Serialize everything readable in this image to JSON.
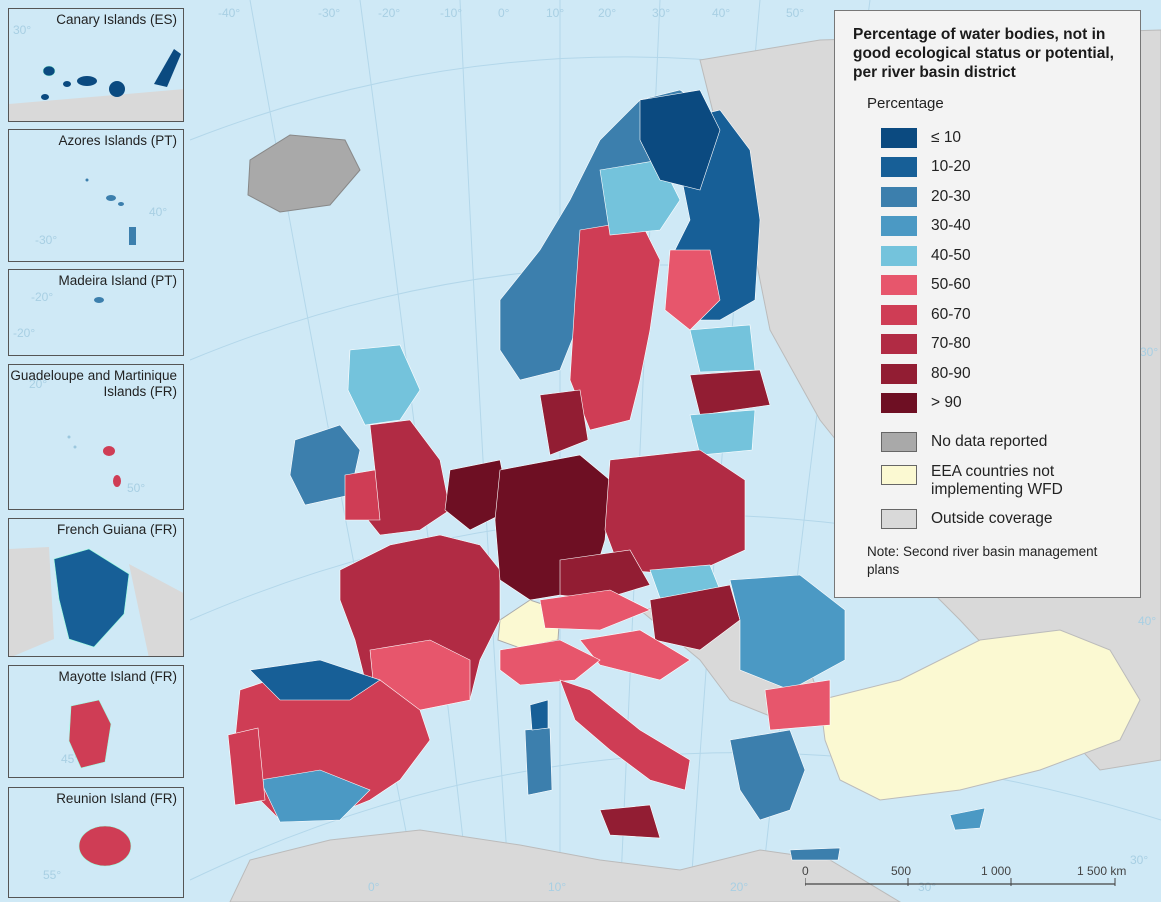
{
  "legend": {
    "title": "Percentage of water bodies, not in good ecological status or potential, per river basin district",
    "subtitle": "Percentage",
    "classes": [
      {
        "label": "≤ 10",
        "color": "#0b4a80"
      },
      {
        "label": "10-20",
        "color": "#175f97"
      },
      {
        "label": "20-30",
        "color": "#3c7fad"
      },
      {
        "label": "30-40",
        "color": "#4b99c4"
      },
      {
        "label": "40-50",
        "color": "#74c3dc"
      },
      {
        "label": "50-60",
        "color": "#e7566c"
      },
      {
        "label": "60-70",
        "color": "#cf3d55"
      },
      {
        "label": "70-80",
        "color": "#b12b44"
      },
      {
        "label": "80-90",
        "color": "#921d33"
      },
      {
        "label": "> 90",
        "color": "#6e0f23"
      }
    ],
    "other_classes": [
      {
        "label": "No data reported",
        "color": "#a9a9a9"
      },
      {
        "label": "EEA countries not implementing WFD",
        "color": "#fbf9d2"
      },
      {
        "label": "Outside coverage",
        "color": "#d9d9d9"
      }
    ],
    "note": "Note: Second river basin management plans"
  },
  "insets": [
    {
      "label": "Canary Islands (ES)"
    },
    {
      "label": "Azores Islands (PT)"
    },
    {
      "label": "Madeira Island (PT)"
    },
    {
      "label": "Guadeloupe and Martinique Islands (FR)"
    },
    {
      "label": "French Guiana (FR)"
    },
    {
      "label": "Mayotte Island (FR)"
    },
    {
      "label": "Reunion Island (FR)"
    }
  ],
  "graticule": {
    "top": [
      "-40°",
      "-30°",
      "-20°",
      "-10°",
      "0°",
      "10°",
      "20°",
      "30°",
      "40°",
      "50°"
    ],
    "bottom": [
      "0°",
      "10°",
      "20°",
      "30°",
      "30°"
    ],
    "right": [
      "40°",
      "30°"
    ],
    "inset": [
      "30°",
      "-30°",
      "40°",
      "-20°",
      "-20°",
      "20°",
      "50°",
      "10°",
      "45°",
      "55°"
    ]
  },
  "scale_bar": {
    "ticks": [
      "0",
      "500",
      "1 000",
      "1 500 km"
    ]
  },
  "colors": {
    "sea": "#cfe9f6",
    "outside_land": "#d9d9d9",
    "no_data": "#a9a9a9",
    "non_wfd": "#fbf9d2",
    "graticule": "#a8cfe3"
  }
}
